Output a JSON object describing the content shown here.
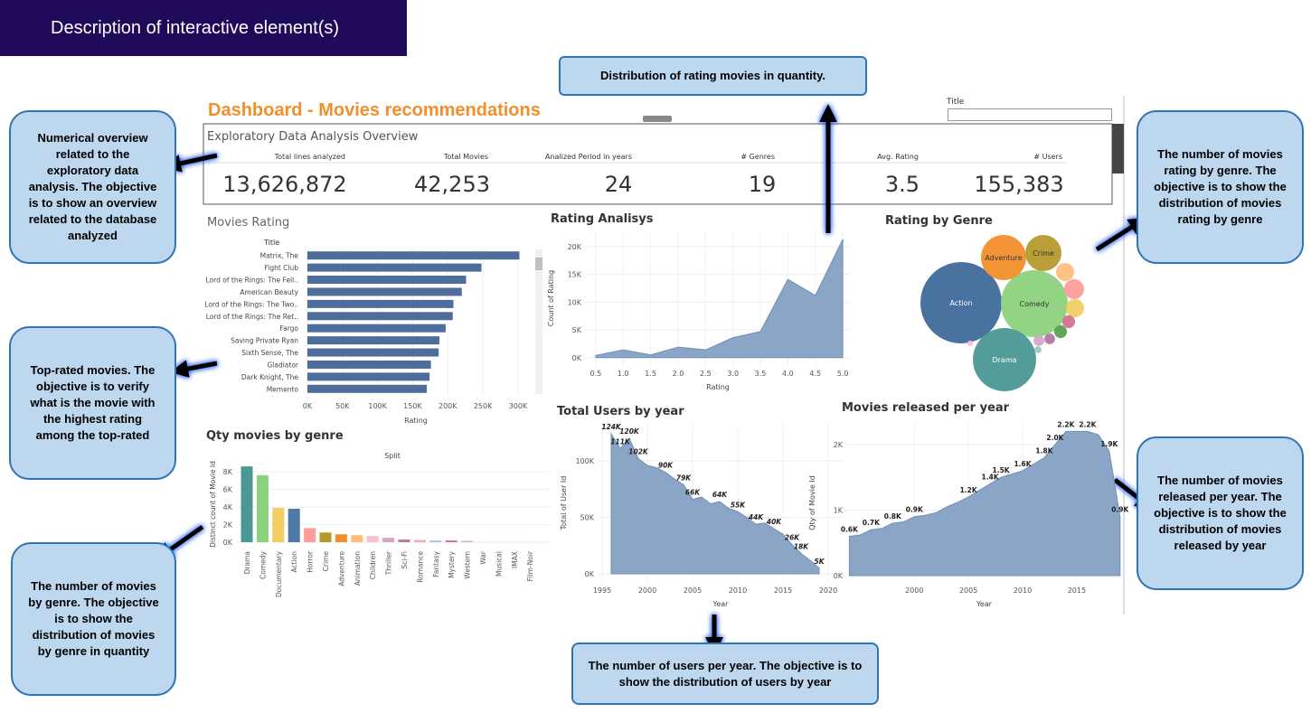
{
  "header": {
    "title": "Description of interactive element(s)"
  },
  "annotations": [
    "Numerical overview related to the exploratory data analysis. The objective is to show an overview related to the database analyzed",
    "Top-rated movies. The objective is to verify what is the movie with the highest rating among the top-rated",
    "The number of movies by genre. The objective is to show the distribution of movies by genre in quantity",
    "Distribution of rating movies in quantity.",
    "The number of movies rating by genre. The objective is to show the distribution of movies rating by genre",
    "The number of movies released per year. The objective is to show the distribution of movies released by year",
    "The number of users per year. The objective is to show the distribution of users by year"
  ],
  "dashboard": {
    "title": "Dashboard - Movies recommendations",
    "filter_label": "Title",
    "overview": {
      "title": "Exploratory Data Analysis Overview",
      "kpis": [
        {
          "label": "Total lines analyzed",
          "value": "13,626,872"
        },
        {
          "label": "Total Movies",
          "value": "42,253"
        },
        {
          "label": "Analized Period in years",
          "value": "24"
        },
        {
          "label": "# Genres",
          "value": "19"
        },
        {
          "label": "Avg. Rating",
          "value": "3.5"
        },
        {
          "label": "# Users",
          "value": "155,383"
        }
      ]
    }
  },
  "chart_data": [
    {
      "type": "bar",
      "orientation": "horizontal",
      "title": "Movies Rating",
      "y_label": "Title",
      "x_label": "Rating",
      "color": "#4e6d9c",
      "categories": [
        "Matrix, The",
        "Fight Club",
        "Lord of the Rings: The Fell..",
        "American Beauty",
        "Lord of the Rings: The Two..",
        "Lord of the Rings: The Ret..",
        "Fargo",
        "Saving Private Ryan",
        "Sixth Sense, The",
        "Gladiator",
        "Dark Knight, The",
        "Memento"
      ],
      "values": [
        302000,
        248000,
        226000,
        220000,
        208000,
        207000,
        197000,
        188000,
        187000,
        176000,
        174000,
        170000
      ],
      "xlim": [
        -6400,
        322000
      ],
      "xticks": [
        {
          "value": 0,
          "label": "0K"
        },
        {
          "value": 50000,
          "label": "50K"
        },
        {
          "value": 100000,
          "label": "100K"
        },
        {
          "value": 150000,
          "label": "150K"
        },
        {
          "value": 200000,
          "label": "200K"
        },
        {
          "value": 250000,
          "label": "250K"
        },
        {
          "value": 300000,
          "label": "300K"
        }
      ],
      "grid": true
    },
    {
      "type": "area",
      "title": "Rating Analisys",
      "x_label": "Rating",
      "y_label": "Count of Rating",
      "color": "#8ba5c6",
      "x": [
        0.5,
        1.0,
        1.5,
        2.0,
        2.5,
        3.0,
        3.5,
        4.0,
        4.5,
        5.0
      ],
      "values": [
        400,
        1400,
        500,
        1900,
        1400,
        3600,
        4700,
        14100,
        11200,
        21300
      ],
      "xlim": [
        0.32,
        5.13
      ],
      "ylim": [
        -1500,
        22900
      ],
      "xticks": [
        0.5,
        {
          "value": 1.0,
          "label": "1.0"
        },
        1.5,
        {
          "value": 2.0,
          "label": "2.0"
        },
        2.5,
        {
          "value": 3.0,
          "label": "3.0"
        },
        3.5,
        {
          "value": 4.0,
          "label": "4.0"
        },
        4.5,
        {
          "value": 5.0,
          "label": "5.0"
        }
      ],
      "yticks": [
        {
          "value": 0,
          "label": "0K"
        },
        {
          "value": 5000,
          "label": "5K"
        },
        {
          "value": 10000,
          "label": "10K"
        },
        {
          "value": 15000,
          "label": "15K"
        },
        {
          "value": 20000,
          "label": "20K"
        }
      ],
      "grid": true
    },
    {
      "type": "bubble",
      "title": "Rating by Genre",
      "categories": [
        "Action",
        "Comedy",
        "Drama",
        "Adventure",
        "Crime",
        null,
        null,
        null,
        null,
        null,
        null,
        null,
        null,
        null
      ],
      "values": [
        8.1,
        5.5,
        4.9,
        2.5,
        1.6,
        0.4,
        0.48,
        0.4,
        0.2,
        0.2,
        0.14,
        0.14,
        0.06,
        0.04
      ],
      "colors": [
        "#3f6a9c",
        "#8cd17d",
        "#499894",
        "#f28e2b",
        "#b6992d",
        "#ffbe7d",
        "#ff9d9a",
        "#f1ce63",
        "#d37295",
        "#59a14f",
        "#b07aa1",
        "#d4a6c8",
        "#9dc6c2",
        "#fabfd2"
      ]
    },
    {
      "type": "bar",
      "orientation": "vertical",
      "title": "Qty movies by genre",
      "subtitle": "Split",
      "y_label": "Distinct count of Movie Id",
      "categories": [
        "Drama",
        "Comedy",
        "Documentary",
        "Action",
        "Horror",
        "Crime",
        "Adventure",
        "Animation",
        "Children",
        "Thriller",
        "Sci-Fi",
        "Romance",
        "Fantasy",
        "Mystery",
        "Western",
        "War",
        "Musical",
        "IMAX",
        "Film-Noir"
      ],
      "values": [
        8600,
        7600,
        3900,
        3800,
        1600,
        1100,
        900,
        800,
        700,
        500,
        300,
        250,
        200,
        200,
        150,
        50,
        30,
        10,
        10
      ],
      "colors": [
        "#499894",
        "#8cd17d",
        "#f1ce63",
        "#4e79a7",
        "#ff9d9a",
        "#b6992d",
        "#f28e2b",
        "#ffbe7d",
        "#fabfd2",
        "#d4a6c8",
        "#b07aa1",
        "#f7a8b8",
        "#a0cbe8",
        "#d37295",
        "#d7b5a6",
        "#dddddd",
        "#dddddd",
        "#dddddd",
        "#dddddd"
      ],
      "ylim": [
        -615,
        9230
      ],
      "yticks": [
        {
          "value": 0,
          "label": "0K"
        },
        {
          "value": 2000,
          "label": "2K"
        },
        {
          "value": 4000,
          "label": "4K"
        },
        {
          "value": 6000,
          "label": "6K"
        },
        {
          "value": 8000,
          "label": "8K"
        }
      ],
      "grid": true
    },
    {
      "type": "area",
      "title": "Total Users by year",
      "x_label": "Year",
      "y_label": "Total of User Id",
      "color": "#8ba5c6",
      "x": [
        1996,
        1997,
        1998,
        1999,
        2000,
        2001,
        2002,
        2003,
        2004,
        2005,
        2006,
        2007,
        2008,
        2009,
        2010,
        2011,
        2012,
        2013,
        2014,
        2015,
        2016,
        2017,
        2018,
        2019
      ],
      "values": [
        124000,
        111000,
        120000,
        102000,
        96000,
        94000,
        90000,
        84000,
        79000,
        66000,
        68000,
        62000,
        64000,
        58000,
        55000,
        50000,
        44000,
        45000,
        40000,
        35000,
        26000,
        18000,
        12000,
        5000
      ],
      "value_labels": [
        "124K",
        "111K",
        "120K",
        "102K",
        null,
        null,
        "90K",
        null,
        "79K",
        "66K",
        null,
        null,
        "64K",
        null,
        "55K",
        null,
        "44K",
        null,
        "40K",
        null,
        "26K",
        "18K",
        null,
        "5K"
      ],
      "xlim": [
        1994.6,
        2021.6
      ],
      "ylim": [
        -8000,
        133600
      ],
      "xticks": [
        1995,
        2000,
        2005,
        2010,
        2015,
        2020
      ],
      "yticks": [
        {
          "value": 0,
          "label": "0K"
        },
        {
          "value": 50000,
          "label": "50K"
        },
        {
          "value": 100000,
          "label": "100K"
        }
      ],
      "grid": true
    },
    {
      "type": "area",
      "title": "Movies released per year",
      "x_label": "Year",
      "y_label": "Qty of Movie Id",
      "color": "#8ba5c6",
      "x": [
        1994,
        1995,
        1996,
        1997,
        1998,
        1999,
        2000,
        2001,
        2002,
        2003,
        2004,
        2005,
        2006,
        2007,
        2008,
        2009,
        2010,
        2011,
        2012,
        2013,
        2014,
        2015,
        2016,
        2017,
        2018,
        2019
      ],
      "values": [
        600,
        620,
        700,
        720,
        800,
        820,
        900,
        920,
        960,
        1050,
        1120,
        1200,
        1300,
        1400,
        1500,
        1550,
        1600,
        1700,
        1800,
        2000,
        2200,
        2200,
        2200,
        2150,
        1900,
        900
      ],
      "value_labels": [
        "0.6K",
        null,
        "0.7K",
        null,
        "0.8K",
        null,
        "0.9K",
        null,
        null,
        null,
        null,
        "1.2K",
        null,
        "1.4K",
        "1.5K",
        null,
        "1.6K",
        null,
        "1.8K",
        "2.0K",
        "2.2K",
        null,
        "2.2K",
        null,
        "1.9K",
        "0.9K"
      ],
      "xlim": [
        1993.8,
        2019.1
      ],
      "ylim": [
        -110,
        2330
      ],
      "xticks": [
        2000,
        2005,
        2010,
        2015
      ],
      "yticks": [
        {
          "value": 0,
          "label": "0K"
        },
        {
          "value": 1000,
          "label": "1K"
        },
        {
          "value": 2000,
          "label": "2K"
        }
      ],
      "grid": true
    }
  ]
}
